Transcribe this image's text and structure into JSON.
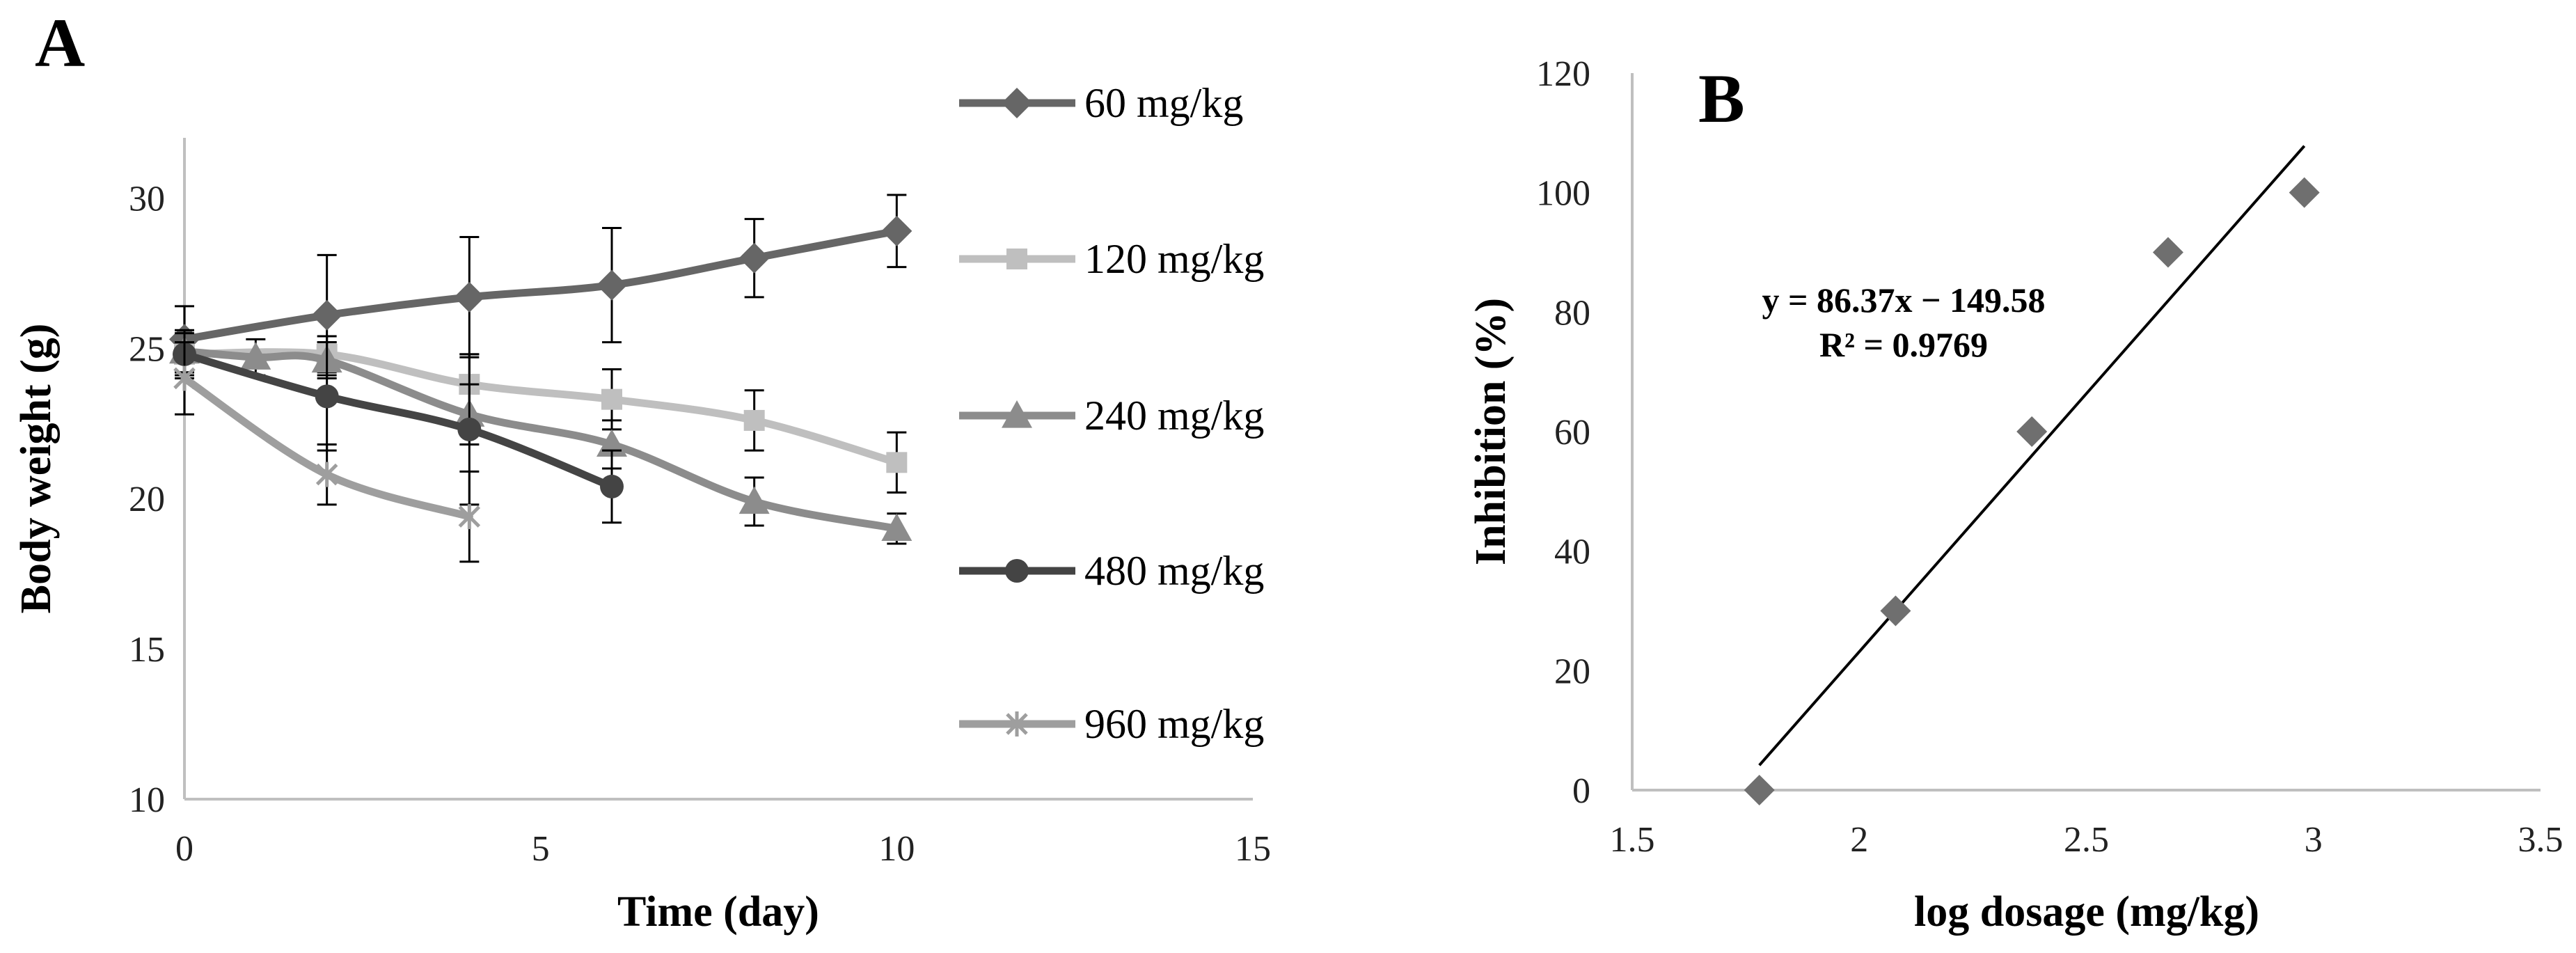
{
  "chart_data": [
    {
      "type": "line",
      "panel_label": "A",
      "xlabel": "Time (day)",
      "ylabel": "Body weight (g)",
      "xlim": [
        0,
        15
      ],
      "ylim": [
        10,
        32
      ],
      "xticks": [
        "0",
        "5",
        "10",
        "15"
      ],
      "yticks": [
        "10",
        "15",
        "20",
        "25",
        "30"
      ],
      "legend_position": "right",
      "series": [
        {
          "name": "60 mg/kg",
          "color": "#666666",
          "marker": "diamond",
          "x": [
            0,
            2,
            4,
            6,
            8,
            10
          ],
          "y": [
            25.3,
            26.1,
            26.7,
            27.1,
            28.0,
            28.9
          ],
          "err": [
            1.1,
            2.0,
            2.0,
            1.9,
            1.3,
            1.2
          ]
        },
        {
          "name": "120 mg/kg",
          "color": "#bfbfbf",
          "marker": "square",
          "x": [
            0,
            2,
            4,
            6,
            8,
            10
          ],
          "y": [
            24.8,
            24.8,
            23.8,
            23.3,
            22.6,
            21.2
          ],
          "err": [
            0.8,
            0.6,
            1.0,
            1.0,
            1.0,
            1.0
          ]
        },
        {
          "name": "240 mg/kg",
          "color": "#8c8c8c",
          "marker": "triangle",
          "x": [
            0,
            1,
            2,
            4,
            6,
            8,
            10
          ],
          "y": [
            24.9,
            24.7,
            24.6,
            22.8,
            21.8,
            19.9,
            19.0
          ],
          "err": [
            0.7,
            0.6,
            0.6,
            1.0,
            0.8,
            0.8,
            0.5
          ]
        },
        {
          "name": "480 mg/kg",
          "color": "#444444",
          "marker": "circle",
          "x": [
            0,
            2,
            4,
            6
          ],
          "y": [
            24.8,
            23.4,
            22.3,
            20.4
          ],
          "err": [
            0.7,
            1.8,
            2.5,
            1.2
          ]
        },
        {
          "name": "960 mg/kg",
          "color": "#9e9e9e",
          "marker": "star",
          "x": [
            0,
            2,
            4
          ],
          "y": [
            24.0,
            20.8,
            19.4
          ],
          "err": [
            1.2,
            1.0,
            1.5
          ]
        }
      ]
    },
    {
      "type": "scatter",
      "panel_label": "B",
      "xlabel": "log dosage (mg/kg)",
      "ylabel": "Inhibition (%)",
      "xlim": [
        1.5,
        3.5
      ],
      "ylim": [
        0,
        120
      ],
      "xticks": [
        "1.5",
        "2",
        "2.5",
        "3",
        "3.5"
      ],
      "yticks": [
        "0",
        "20",
        "40",
        "60",
        "80",
        "100",
        "120"
      ],
      "points": {
        "x": [
          1.78,
          2.08,
          2.38,
          2.68,
          2.98
        ],
        "y": [
          0,
          30,
          60,
          90,
          100
        ]
      },
      "trendline": {
        "slope": 86.37,
        "intercept": -149.58,
        "x_range": [
          1.78,
          2.98
        ]
      },
      "equation": "y = 86.37x − 149.58",
      "r_squared": "R² = 0.9769"
    }
  ]
}
